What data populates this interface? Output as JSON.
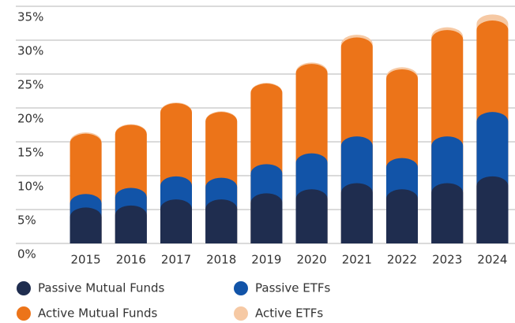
{
  "chart_data": {
    "type": "stacked_bar",
    "categories": [
      "2015",
      "2016",
      "2017",
      "2018",
      "2019",
      "2020",
      "2021",
      "2022",
      "2023",
      "2024"
    ],
    "series": [
      {
        "name": "Passive Mutual Funds",
        "color": "#1f2d4f",
        "values": [
          5.3,
          5.6,
          6.5,
          6.5,
          7.4,
          8.0,
          8.9,
          8.0,
          8.9,
          9.9
        ]
      },
      {
        "name": "Passive ETFs",
        "color": "#1254a8",
        "values": [
          2.0,
          2.6,
          3.4,
          3.2,
          4.3,
          5.3,
          6.9,
          4.6,
          6.9,
          9.5
        ]
      },
      {
        "name": "Active Mutual Funds",
        "color": "#ec7419",
        "values": [
          8.9,
          9.3,
          10.8,
          9.7,
          11.9,
          13.2,
          14.6,
          13.1,
          15.7,
          13.5
        ]
      },
      {
        "name": "Active ETFs",
        "color": "#f6c9a4",
        "values": [
          0.2,
          0.1,
          0.1,
          0.1,
          0.1,
          0.2,
          0.4,
          0.3,
          0.4,
          0.9
        ]
      }
    ],
    "ylim": [
      0,
      35
    ],
    "yticks": [
      {
        "value": 0,
        "label": "0%"
      },
      {
        "value": 5,
        "label": "5%"
      },
      {
        "value": 10,
        "label": "10%"
      },
      {
        "value": 15,
        "label": "15%"
      },
      {
        "value": 20,
        "label": "20%"
      },
      {
        "value": 25,
        "label": "25%"
      },
      {
        "value": 30,
        "label": "30%"
      },
      {
        "value": 35,
        "label": "35%"
      }
    ],
    "grid": true
  }
}
